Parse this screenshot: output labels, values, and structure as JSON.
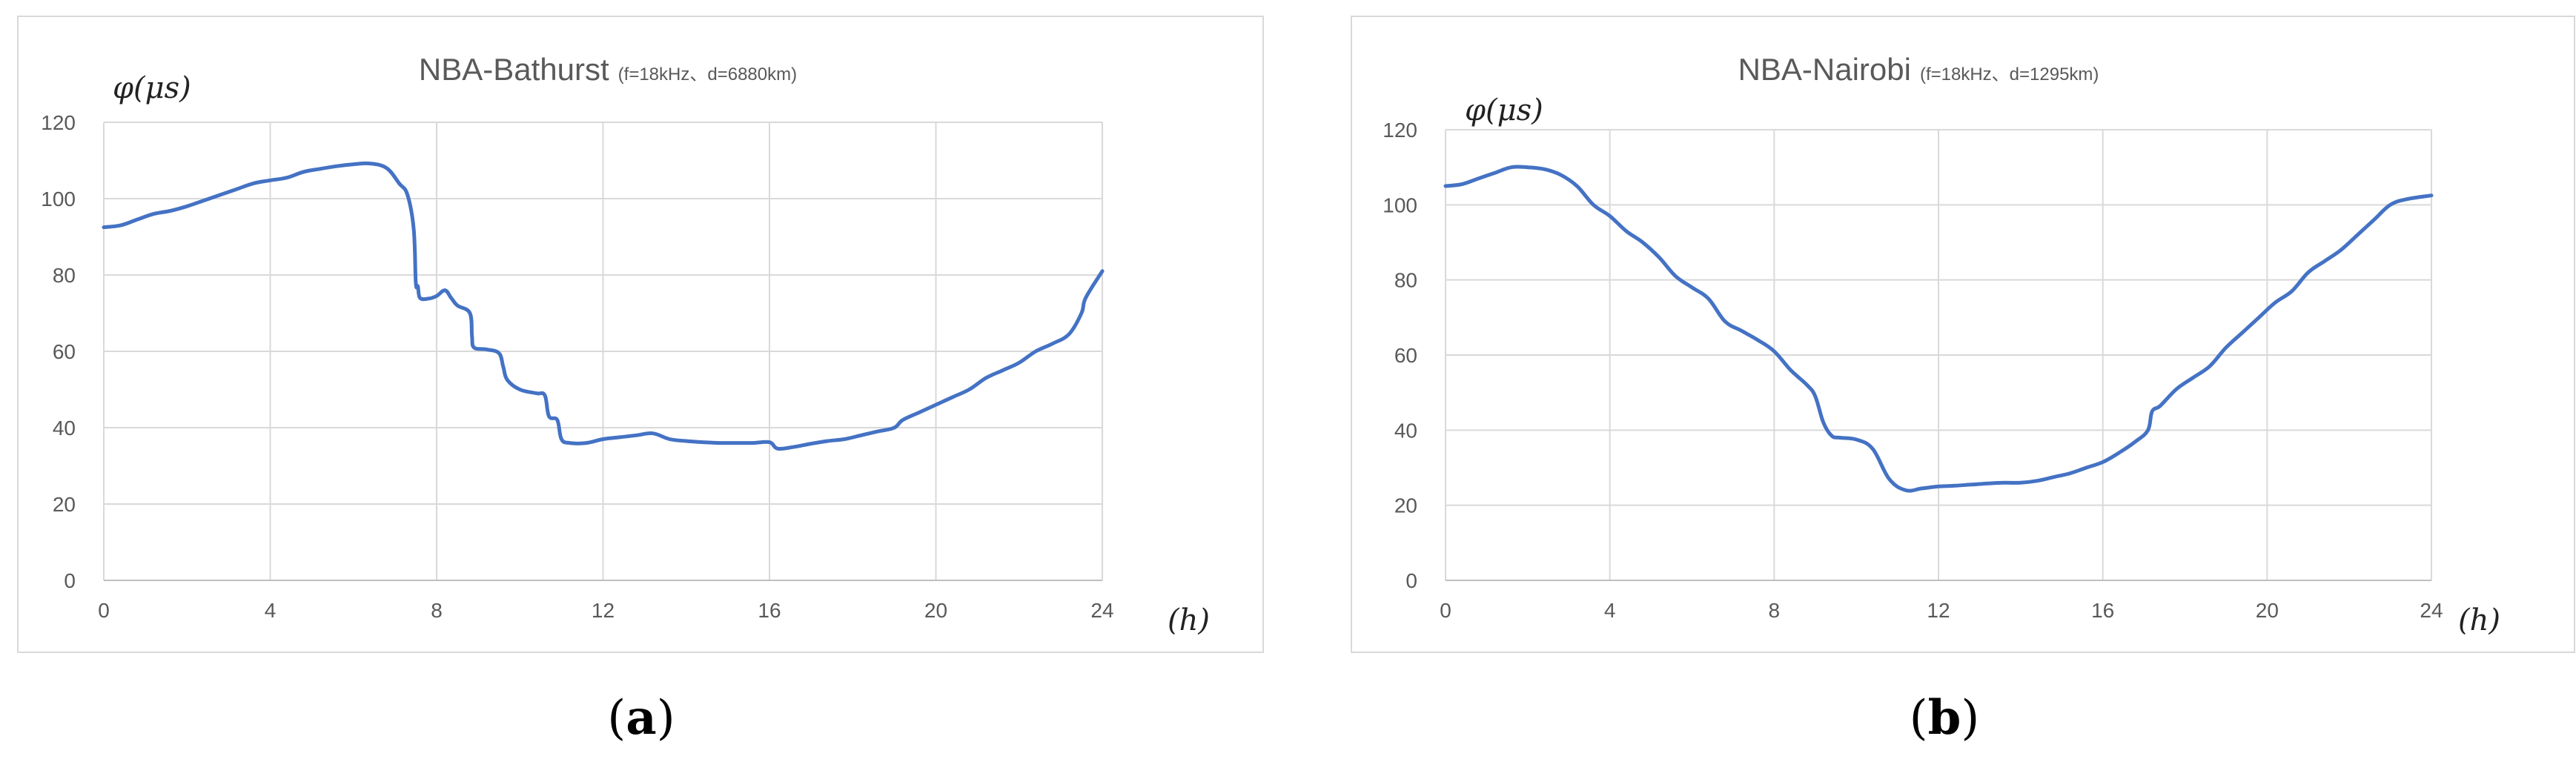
{
  "chart_data": [
    {
      "type": "line",
      "panel_label": "(a)",
      "title": "NBA-Bathurst",
      "subtitle": "(f=18kHz、d=6880km)",
      "ylabel": "φ(μs)",
      "xlabel": "(h)",
      "xlim": [
        0,
        24
      ],
      "ylim": [
        0,
        120
      ],
      "xticks": [
        0,
        4,
        8,
        12,
        16,
        20,
        24
      ],
      "yticks": [
        0,
        20,
        40,
        60,
        80,
        100,
        120
      ],
      "grid": "vertical and horizontal",
      "line_color": "#4472c4",
      "x": [
        0,
        0.4,
        0.8,
        1.2,
        1.6,
        2,
        2.4,
        2.8,
        3.2,
        3.6,
        4,
        4.4,
        4.8,
        5.2,
        5.6,
        6,
        6.4,
        6.8,
        7.1,
        7.3,
        7.45,
        7.5,
        7.55,
        7.6,
        7.8,
        8,
        8.2,
        8.35,
        8.5,
        8.8,
        8.85,
        8.9,
        9.2,
        9.5,
        9.6,
        9.7,
        10,
        10.4,
        10.6,
        10.7,
        10.9,
        11,
        11.2,
        11.6,
        12,
        12.4,
        12.8,
        13.2,
        13.6,
        14,
        14.4,
        14.8,
        15.2,
        15.6,
        16,
        16.2,
        16.6,
        17,
        17.4,
        17.8,
        18.2,
        18.6,
        19,
        19.2,
        19.6,
        20,
        20.4,
        20.8,
        21.2,
        21.6,
        22,
        22.4,
        22.8,
        23.2,
        23.5,
        23.6,
        24
      ],
      "y": [
        92.5,
        93,
        94.5,
        96,
        96.8,
        98,
        99.5,
        101,
        102.5,
        104,
        104.8,
        105.5,
        107,
        107.8,
        108.5,
        109,
        109.2,
        108,
        104,
        101,
        92,
        78,
        77,
        74,
        73.8,
        74.5,
        76,
        74,
        72,
        70,
        64,
        61,
        60.5,
        59.5,
        56,
        52.5,
        50,
        49,
        48.5,
        43,
        42,
        37,
        36,
        36,
        37,
        37.5,
        38,
        38.5,
        37,
        36.5,
        36.2,
        36,
        36,
        36,
        36.2,
        34.5,
        35,
        35.8,
        36.5,
        37,
        38,
        39,
        40,
        42,
        44,
        46,
        48,
        50,
        53,
        55,
        57,
        60,
        62,
        64.5,
        70,
        74,
        81
      ]
    },
    {
      "type": "line",
      "panel_label": "(b)",
      "title": "NBA-Nairobi",
      "subtitle": "(f=18kHz、d=1295km)",
      "ylabel": "φ(μs)",
      "xlabel": "(h)",
      "xlim": [
        0,
        24
      ],
      "ylim": [
        0,
        120
      ],
      "xticks": [
        0,
        4,
        8,
        12,
        16,
        20,
        24
      ],
      "yticks": [
        0,
        20,
        40,
        60,
        80,
        100,
        120
      ],
      "grid": "vertical and horizontal",
      "line_color": "#4472c4",
      "x": [
        0,
        0.4,
        0.8,
        1.2,
        1.6,
        2,
        2.4,
        2.8,
        3.2,
        3.6,
        4,
        4.4,
        4.8,
        5.2,
        5.6,
        6,
        6.4,
        6.8,
        7.2,
        7.6,
        8,
        8.4,
        8.8,
        9,
        9.2,
        9.4,
        9.6,
        10,
        10.4,
        10.8,
        11.2,
        11.6,
        12,
        12.4,
        12.8,
        13.2,
        13.6,
        14,
        14.4,
        14.8,
        15.2,
        15.6,
        16,
        16.4,
        16.8,
        17.1,
        17.2,
        17.4,
        17.8,
        18.2,
        18.6,
        19,
        19.4,
        19.8,
        20.2,
        20.6,
        21,
        21.4,
        21.8,
        22.2,
        22.6,
        23,
        23.4,
        24
      ],
      "y": [
        105,
        105.5,
        107,
        108.5,
        110,
        110,
        109.5,
        108,
        105,
        100,
        97,
        93,
        90,
        86,
        81,
        78,
        75,
        69,
        66.5,
        64,
        61,
        56,
        52,
        49,
        42,
        38.5,
        38,
        37.5,
        35,
        27,
        24,
        24.5,
        25,
        25.2,
        25.5,
        25.8,
        26,
        26,
        26.5,
        27.5,
        28.5,
        30,
        31.5,
        34,
        37,
        40,
        45,
        46.5,
        51,
        54,
        57,
        62,
        66,
        70,
        74,
        77,
        82,
        85,
        88,
        92,
        96,
        100,
        101.5,
        102.5
      ]
    }
  ]
}
